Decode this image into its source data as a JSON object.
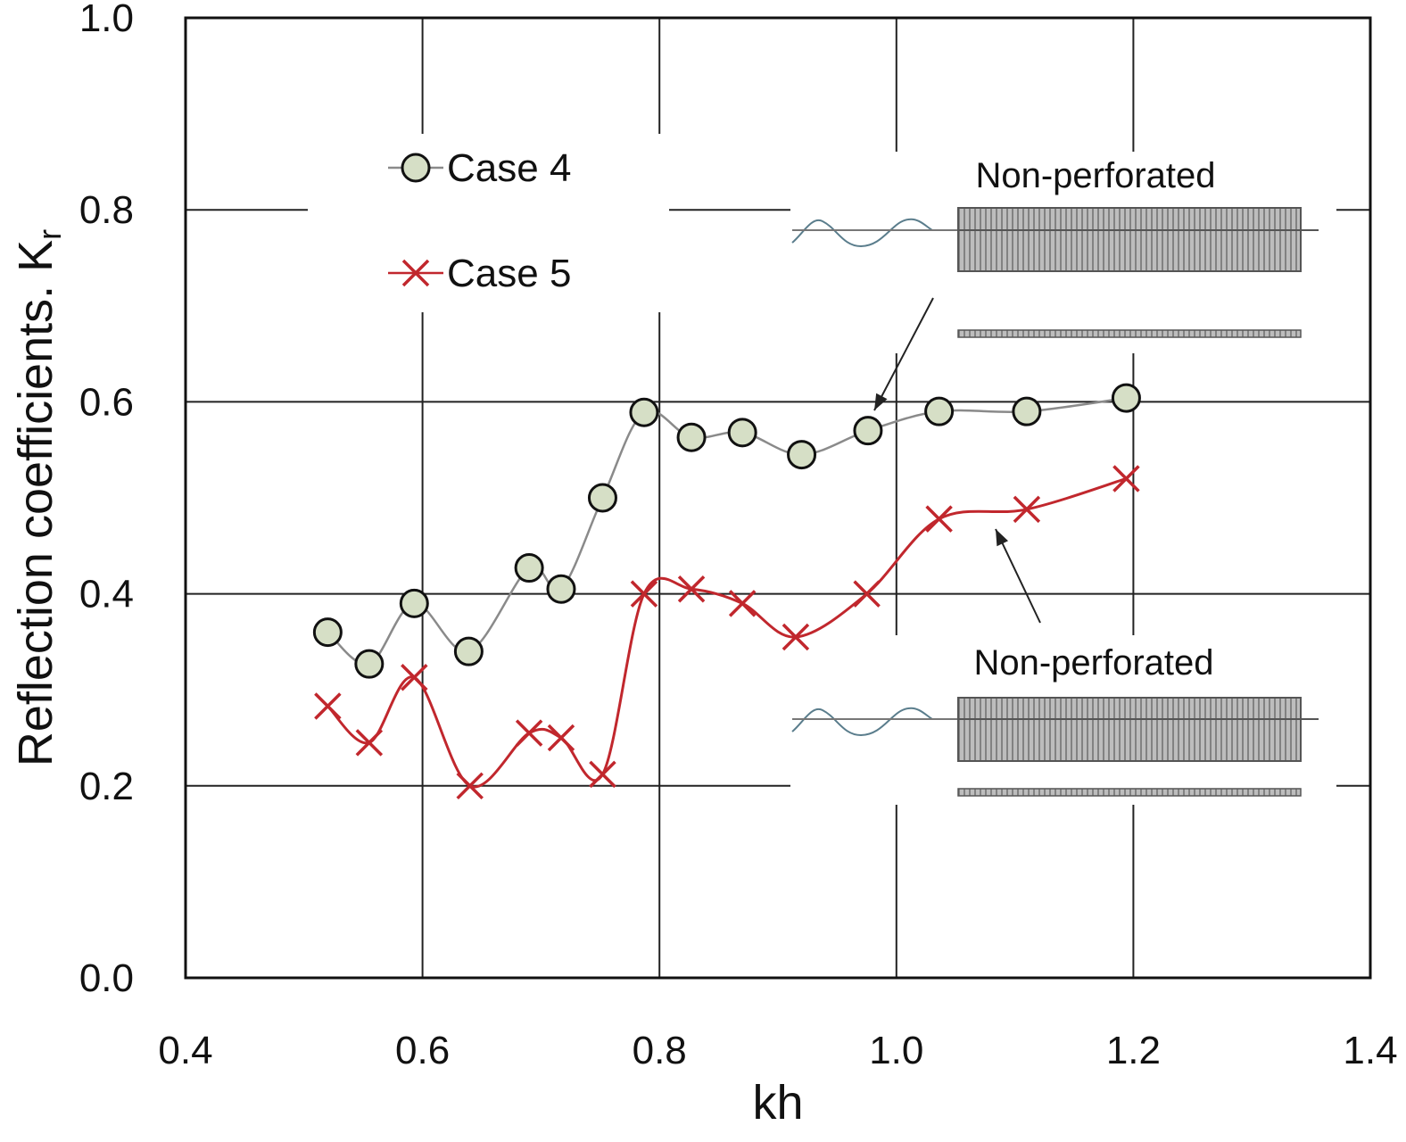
{
  "chart_data": {
    "type": "line",
    "xlabel": "kh",
    "ylabel": "Reflection coefficients. K",
    "ylabel_subscript": "r",
    "xlim": [
      0.4,
      1.4
    ],
    "ylim": [
      0.0,
      1.0
    ],
    "x_ticks": [
      "0.4",
      "0.6",
      "0.8",
      "1.0",
      "1.2",
      "1.4"
    ],
    "y_ticks": [
      "0.0",
      "0.2",
      "0.4",
      "0.6",
      "0.8",
      "1.0"
    ],
    "grid": true,
    "legend_position": "upper-left",
    "series": [
      {
        "name": "Case 4",
        "marker": "circle",
        "color": "#8a8a8a",
        "marker_fill": "#d6dfc6",
        "x": [
          0.52,
          0.555,
          0.593,
          0.639,
          0.69,
          0.717,
          0.752,
          0.787,
          0.827,
          0.87,
          0.92,
          0.976,
          1.036,
          1.11,
          1.194
        ],
        "y": [
          0.36,
          0.327,
          0.39,
          0.34,
          0.427,
          0.405,
          0.5,
          0.589,
          0.563,
          0.568,
          0.545,
          0.57,
          0.59,
          0.59,
          0.604
        ]
      },
      {
        "name": "Case 5",
        "marker": "x",
        "color": "#c1272d",
        "x": [
          0.52,
          0.555,
          0.593,
          0.64,
          0.69,
          0.717,
          0.752,
          0.787,
          0.827,
          0.87,
          0.915,
          0.975,
          1.036,
          1.11,
          1.194
        ],
        "y": [
          0.283,
          0.245,
          0.313,
          0.2,
          0.255,
          0.25,
          0.212,
          0.4,
          0.405,
          0.39,
          0.355,
          0.4,
          0.478,
          0.488,
          0.52
        ]
      }
    ],
    "annotations": [
      {
        "text": "Non-perforated"
      },
      {
        "text": "Non-perforated"
      }
    ]
  }
}
